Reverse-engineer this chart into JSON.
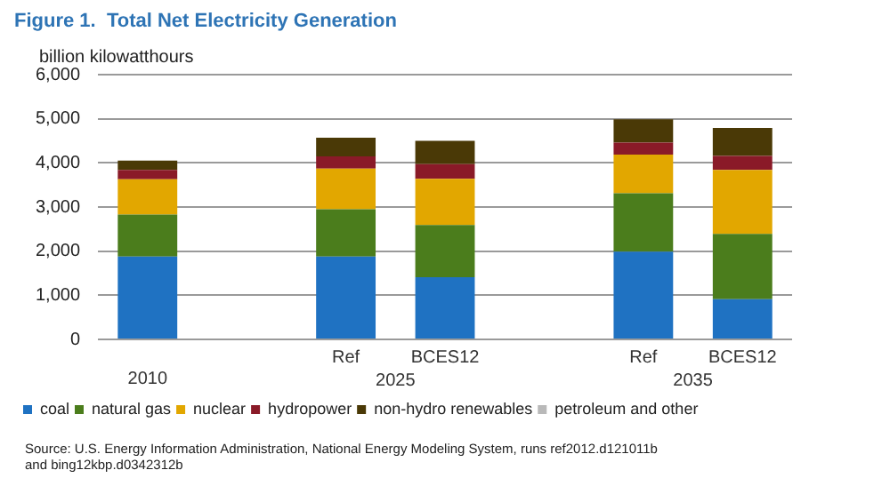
{
  "chart_data": {
    "type": "bar",
    "stacked": true,
    "title": "Figure 1.  Total Net Electricity Generation",
    "ylabel": "billion kilowatthours",
    "categories": [
      "2010",
      null,
      "Ref",
      "BCES12",
      null,
      "Ref",
      "BCES12"
    ],
    "series": [
      {
        "name": "coal",
        "color": "#1f72c2",
        "values": [
          1880,
          null,
          1880,
          1410,
          null,
          1990,
          910
        ]
      },
      {
        "name": "natural gas",
        "color": "#4b7d1c",
        "values": [
          950,
          null,
          1070,
          1180,
          null,
          1320,
          1480
        ]
      },
      {
        "name": "nuclear",
        "color": "#e2a700",
        "values": [
          800,
          null,
          920,
          1050,
          null,
          880,
          1450
        ]
      },
      {
        "name": "hydropower",
        "color": "#8a1a28",
        "values": [
          210,
          null,
          280,
          330,
          null,
          270,
          320
        ]
      },
      {
        "name": "non-hydro renewables",
        "color": "#4a3906",
        "values": [
          210,
          null,
          420,
          530,
          null,
          530,
          630
        ]
      },
      {
        "name": "petroleum and other",
        "color": "#b9b9b9",
        "values": [
          null,
          null,
          null,
          null,
          null,
          null,
          null
        ]
      }
    ],
    "ylim": [
      0,
      6000
    ],
    "yticks": [
      0,
      {
        "value": 1000,
        "label": "1,000"
      },
      {
        "value": 2000,
        "label": "2,000"
      },
      {
        "value": 3000,
        "label": "3,000"
      },
      {
        "value": 4000,
        "label": "4,000"
      },
      {
        "value": 5000,
        "label": "5,000"
      },
      {
        "value": 6000,
        "label": "6,000"
      }
    ],
    "grid": "y",
    "legend": "bottom",
    "annotations": [
      "2025",
      "2035",
      "Source: U.S. Energy Information Administration, National Energy Modeling System, runs ref2012.d121011b\nand bing12kbp.d0342312b"
    ]
  }
}
